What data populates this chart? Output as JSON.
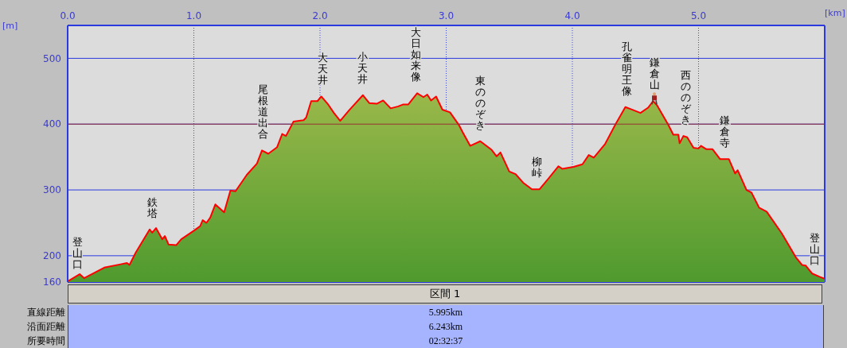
{
  "chart_data": {
    "type": "area",
    "xlabel": "[km]",
    "ylabel": "[m]",
    "x": [
      0,
      0.095,
      0.13,
      0.29,
      0.42,
      0.47,
      0.49,
      0.54,
      0.65,
      0.67,
      0.7,
      0.75,
      0.77,
      0.8,
      0.86,
      0.9,
      1.0,
      1.05,
      1.07,
      1.1,
      1.13,
      1.17,
      1.24,
      1.29,
      1.33,
      1.42,
      1.5,
      1.54,
      1.59,
      1.66,
      1.7,
      1.73,
      1.79,
      1.87,
      1.89,
      1.93,
      1.98,
      2.01,
      2.06,
      2.11,
      2.16,
      2.23,
      2.34,
      2.39,
      2.45,
      2.5,
      2.56,
      2.62,
      2.66,
      2.7,
      2.77,
      2.82,
      2.85,
      2.88,
      2.92,
      2.97,
      3.03,
      3.1,
      3.13,
      3.19,
      3.27,
      3.36,
      3.4,
      3.43,
      3.5,
      3.55,
      3.61,
      3.68,
      3.74,
      3.81,
      3.89,
      3.92,
      4.01,
      4.08,
      4.13,
      4.17,
      4.26,
      4.34,
      4.42,
      4.46,
      4.54,
      4.6,
      4.64,
      4.67,
      4.76,
      4.8,
      4.84,
      4.85,
      4.88,
      4.91,
      4.96,
      5.0,
      5.02,
      5.06,
      5.11,
      5.17,
      5.24,
      5.29,
      5.31,
      5.38,
      5.42,
      5.48,
      5.54,
      5.66,
      5.77,
      5.82,
      5.85,
      5.9,
      5.96,
      6.0
    ],
    "series": [
      {
        "color": "#ff0000",
        "values": [
          161,
          172,
          166,
          182,
          187,
          189,
          186,
          205,
          240,
          235,
          242,
          225,
          230,
          217,
          216,
          225,
          238,
          245,
          254,
          250,
          258,
          278,
          266,
          299,
          298,
          323,
          340,
          360,
          355,
          365,
          385,
          382,
          404,
          406,
          410,
          435,
          435,
          442,
          431,
          417,
          405,
          421,
          444,
          432,
          431,
          436,
          424,
          427,
          430,
          430,
          447,
          441,
          445,
          436,
          442,
          422,
          418,
          399,
          388,
          367,
          374,
          361,
          351,
          357,
          328,
          324,
          311,
          301,
          301,
          317,
          336,
          332,
          335,
          339,
          353,
          349,
          370,
          399,
          426,
          423,
          417,
          425,
          435,
          429,
          399,
          384,
          384,
          371,
          382,
          380,
          364,
          363,
          367,
          362,
          362,
          347,
          347,
          325,
          330,
          300,
          296,
          273,
          267,
          234,
          198,
          186,
          185,
          173,
          168,
          165
        ]
      }
    ],
    "xlim": [
      0,
      6.0
    ],
    "ylim": [
      160,
      550
    ],
    "xticks": [
      {
        "value": 0,
        "label": "0.0"
      },
      {
        "value": 1,
        "label": "1.0"
      },
      {
        "value": 2,
        "label": "2.0"
      },
      {
        "value": 3,
        "label": "3.0"
      },
      {
        "value": 4,
        "label": "4.0"
      },
      {
        "value": 5,
        "label": "5.0"
      }
    ],
    "yticks": [
      160,
      200,
      300,
      400,
      500
    ],
    "grid": true,
    "ref_lines": [
      {
        "axis": "y",
        "value": 400,
        "color": "#993333"
      }
    ],
    "annotations": [
      {
        "text": "登山口",
        "x": 0.04,
        "y": 163
      },
      {
        "text": "鉄塔",
        "x": 0.67,
        "y": 240
      },
      {
        "text": "尾根道出合",
        "x": 1.55,
        "y": 360
      },
      {
        "text": "大天井",
        "x": 2.02,
        "y": 442
      },
      {
        "text": "小天井",
        "x": 2.34,
        "y": 444
      },
      {
        "text": "大日如来像",
        "x": 2.76,
        "y": 447
      },
      {
        "text": "東ののぞき",
        "x": 3.27,
        "y": 374
      },
      {
        "text": "柳峠",
        "x": 3.72,
        "y": 301
      },
      {
        "text": "孔雀明王像",
        "x": 4.43,
        "y": 426
      },
      {
        "text": "鎌倉山",
        "x": 4.65,
        "y": 435
      },
      {
        "text": "西ののぞき",
        "x": 4.9,
        "y": 382
      },
      {
        "text": "鎌倉寺",
        "x": 5.21,
        "y": 347
      },
      {
        "text": "登山口",
        "x": 5.96,
        "y": 168
      },
      "区間 1",
      "直線距離",
      "5.995km",
      "沿面距離",
      "6.243km",
      "所要時間",
      "02:32:37"
    ]
  }
}
